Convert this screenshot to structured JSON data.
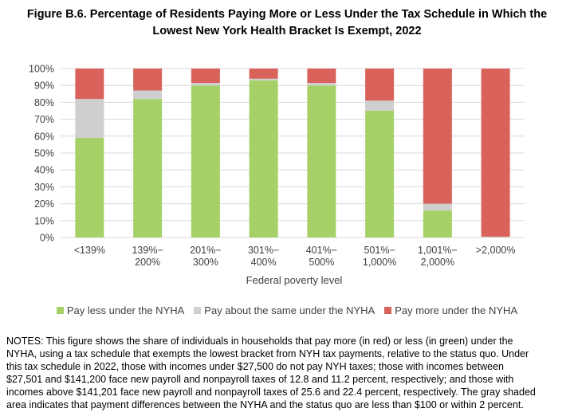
{
  "title_lines": [
    "Figure B.6. Percentage of Residents Paying More or Less Under the Tax Schedule in Which the",
    "Lowest New York Health Bracket Is Exempt, 2022"
  ],
  "chart_data": {
    "type": "bar",
    "stacked": true,
    "categories": [
      [
        "<139%"
      ],
      [
        "139%−",
        "200%"
      ],
      [
        "201%−",
        "300%"
      ],
      [
        "301%−",
        "400%"
      ],
      [
        "401%−",
        "500%"
      ],
      [
        "501%−",
        "1,000%"
      ],
      [
        "1,001%−",
        "2,000%"
      ],
      [
        ">2,000%"
      ]
    ],
    "series": [
      {
        "name": "Pay less under the NYHA",
        "color": "#A5D168",
        "values": [
          59,
          82,
          90,
          93,
          90,
          75,
          16,
          0
        ]
      },
      {
        "name": "Pay about the same under the NYHA",
        "color": "#CFCFCF",
        "values": [
          23,
          5,
          1.5,
          1,
          1.5,
          6,
          4,
          0.5
        ]
      },
      {
        "name": "Pay more under the NYHA",
        "color": "#D9625B",
        "values": [
          18,
          13,
          8.5,
          6,
          8.5,
          19,
          80,
          99.5
        ]
      }
    ],
    "xlabel": "Federal poverty level",
    "ylabel": "",
    "ylim": [
      0,
      100
    ],
    "yticks": [
      "0%",
      "10%",
      "20%",
      "30%",
      "40%",
      "50%",
      "60%",
      "70%",
      "80%",
      "90%",
      "100%"
    ],
    "grid": true,
    "legend_position": "bottom"
  },
  "notes_lines": [
    "NOTES: This figure shows the share of individuals in households that pay more (in red) or less (in green) under the",
    "NYHA, using a tax schedule that exempts the lowest bracket from NYH tax payments, relative to the status quo. Under",
    "this tax schedule in 2022, those with incomes under $27,500 do not pay NYH taxes; those with incomes between",
    "$27,501 and $141,200 face new payroll and nonpayroll taxes of 12.8 and 11.2 percent, respectively; and those with",
    "incomes above $141,201 face new payroll and nonpayroll taxes of 25.6 and 22.4 percent, respectively. The gray shaded",
    "area indicates that payment differences between the NYHA and the status quo are less than $100 or within 2 percent."
  ]
}
